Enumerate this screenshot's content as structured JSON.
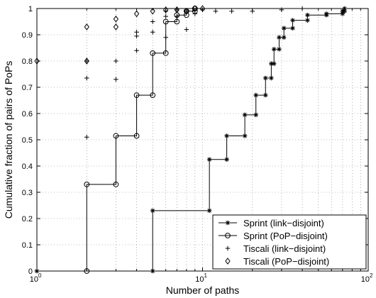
{
  "chart_data": {
    "type": "line",
    "xlabel": "Number of paths",
    "ylabel": "Cumulative fraction of pairs of PoPs",
    "xscale": "log",
    "xlim": [
      1,
      100
    ],
    "ylim": [
      0,
      1
    ],
    "grid": true,
    "legend_position": "bottom-right",
    "x_ticks": [
      {
        "value": 1,
        "base": "10",
        "exp": "0"
      },
      {
        "value": 10,
        "base": "10",
        "exp": "1"
      },
      {
        "value": 100,
        "base": "10",
        "exp": "2"
      }
    ],
    "y_ticks": [
      {
        "value": 0,
        "label": "0"
      },
      {
        "value": 0.1,
        "label": "0.1"
      },
      {
        "value": 0.2,
        "label": "0.2"
      },
      {
        "value": 0.3,
        "label": "0.3"
      },
      {
        "value": 0.4,
        "label": "0.4"
      },
      {
        "value": 0.5,
        "label": "0.5"
      },
      {
        "value": 0.6,
        "label": "0.6"
      },
      {
        "value": 0.7,
        "label": "0.7"
      },
      {
        "value": 0.8,
        "label": "0.8"
      },
      {
        "value": 0.9,
        "label": "0.9"
      },
      {
        "value": 1,
        "label": "1"
      }
    ],
    "series": [
      {
        "name": "Sprint (link−disjoint)",
        "marker": "star",
        "line": "step",
        "points": [
          [
            1,
            0
          ],
          [
            5,
            0
          ],
          [
            5,
            0.23
          ],
          [
            11,
            0.23
          ],
          [
            11,
            0.425
          ],
          [
            14,
            0.425
          ],
          [
            14,
            0.515
          ],
          [
            18,
            0.515
          ],
          [
            18,
            0.595
          ],
          [
            21,
            0.595
          ],
          [
            21,
            0.67
          ],
          [
            24,
            0.67
          ],
          [
            24,
            0.735
          ],
          [
            26,
            0.735
          ],
          [
            26,
            0.79
          ],
          [
            27,
            0.79
          ],
          [
            27,
            0.845
          ],
          [
            29,
            0.845
          ],
          [
            29,
            0.89
          ],
          [
            31,
            0.89
          ],
          [
            31,
            0.925
          ],
          [
            35,
            0.925
          ],
          [
            35,
            0.955
          ],
          [
            43,
            0.955
          ],
          [
            43,
            0.975
          ],
          [
            56,
            0.975
          ],
          [
            56,
            0.98
          ],
          [
            70,
            0.98
          ],
          [
            70,
            0.99
          ],
          [
            72,
            0.99
          ],
          [
            72,
            1
          ]
        ]
      },
      {
        "name": "Sprint (PoP−disjoint)",
        "marker": "circle",
        "line": "step",
        "points": [
          [
            2,
            0
          ],
          [
            2,
            0.33
          ],
          [
            3,
            0.33
          ],
          [
            3,
            0.515
          ],
          [
            4,
            0.515
          ],
          [
            4,
            0.67
          ],
          [
            5,
            0.67
          ],
          [
            5,
            0.83
          ],
          [
            6,
            0.83
          ],
          [
            6,
            0.95
          ],
          [
            7,
            0.95
          ],
          [
            7,
            0.975
          ],
          [
            8,
            0.975
          ],
          [
            8,
            0.99
          ],
          [
            9,
            0.99
          ],
          [
            9,
            1
          ]
        ]
      },
      {
        "name": "Tiscali (link−disjoint)",
        "marker": "plus",
        "line": "none",
        "points": [
          [
            1,
            0
          ],
          [
            2,
            0.51
          ],
          [
            2,
            0.735
          ],
          [
            2,
            0.8
          ],
          [
            3,
            0.8
          ],
          [
            3,
            0.73
          ],
          [
            4,
            0.84
          ],
          [
            4,
            0.91
          ],
          [
            4,
            0.895
          ],
          [
            5,
            0.91
          ],
          [
            5,
            0.95
          ],
          [
            6,
            0.89
          ],
          [
            6,
            0.97
          ],
          [
            6,
            0.99
          ],
          [
            7,
            0.97
          ],
          [
            7,
            0.995
          ],
          [
            8,
            0.92
          ],
          [
            8,
            0.99
          ],
          [
            9,
            0.98
          ],
          [
            10,
            0.995
          ],
          [
            12,
            0.99
          ],
          [
            15,
            0.99
          ],
          [
            20,
            0.99
          ],
          [
            30,
            0.995
          ],
          [
            40,
            1
          ]
        ]
      },
      {
        "name": "Tiscali (PoP−disjoint)",
        "marker": "diamond",
        "line": "none",
        "points": [
          [
            1,
            0.8
          ],
          [
            2,
            0.8
          ],
          [
            2,
            0.93
          ],
          [
            3,
            0.93
          ],
          [
            3,
            0.96
          ],
          [
            4,
            0.98
          ],
          [
            5,
            0.99
          ],
          [
            6,
            0.995
          ],
          [
            7,
            0.995
          ],
          [
            8,
            0.99
          ],
          [
            9,
            1
          ],
          [
            10,
            1
          ]
        ]
      }
    ]
  }
}
